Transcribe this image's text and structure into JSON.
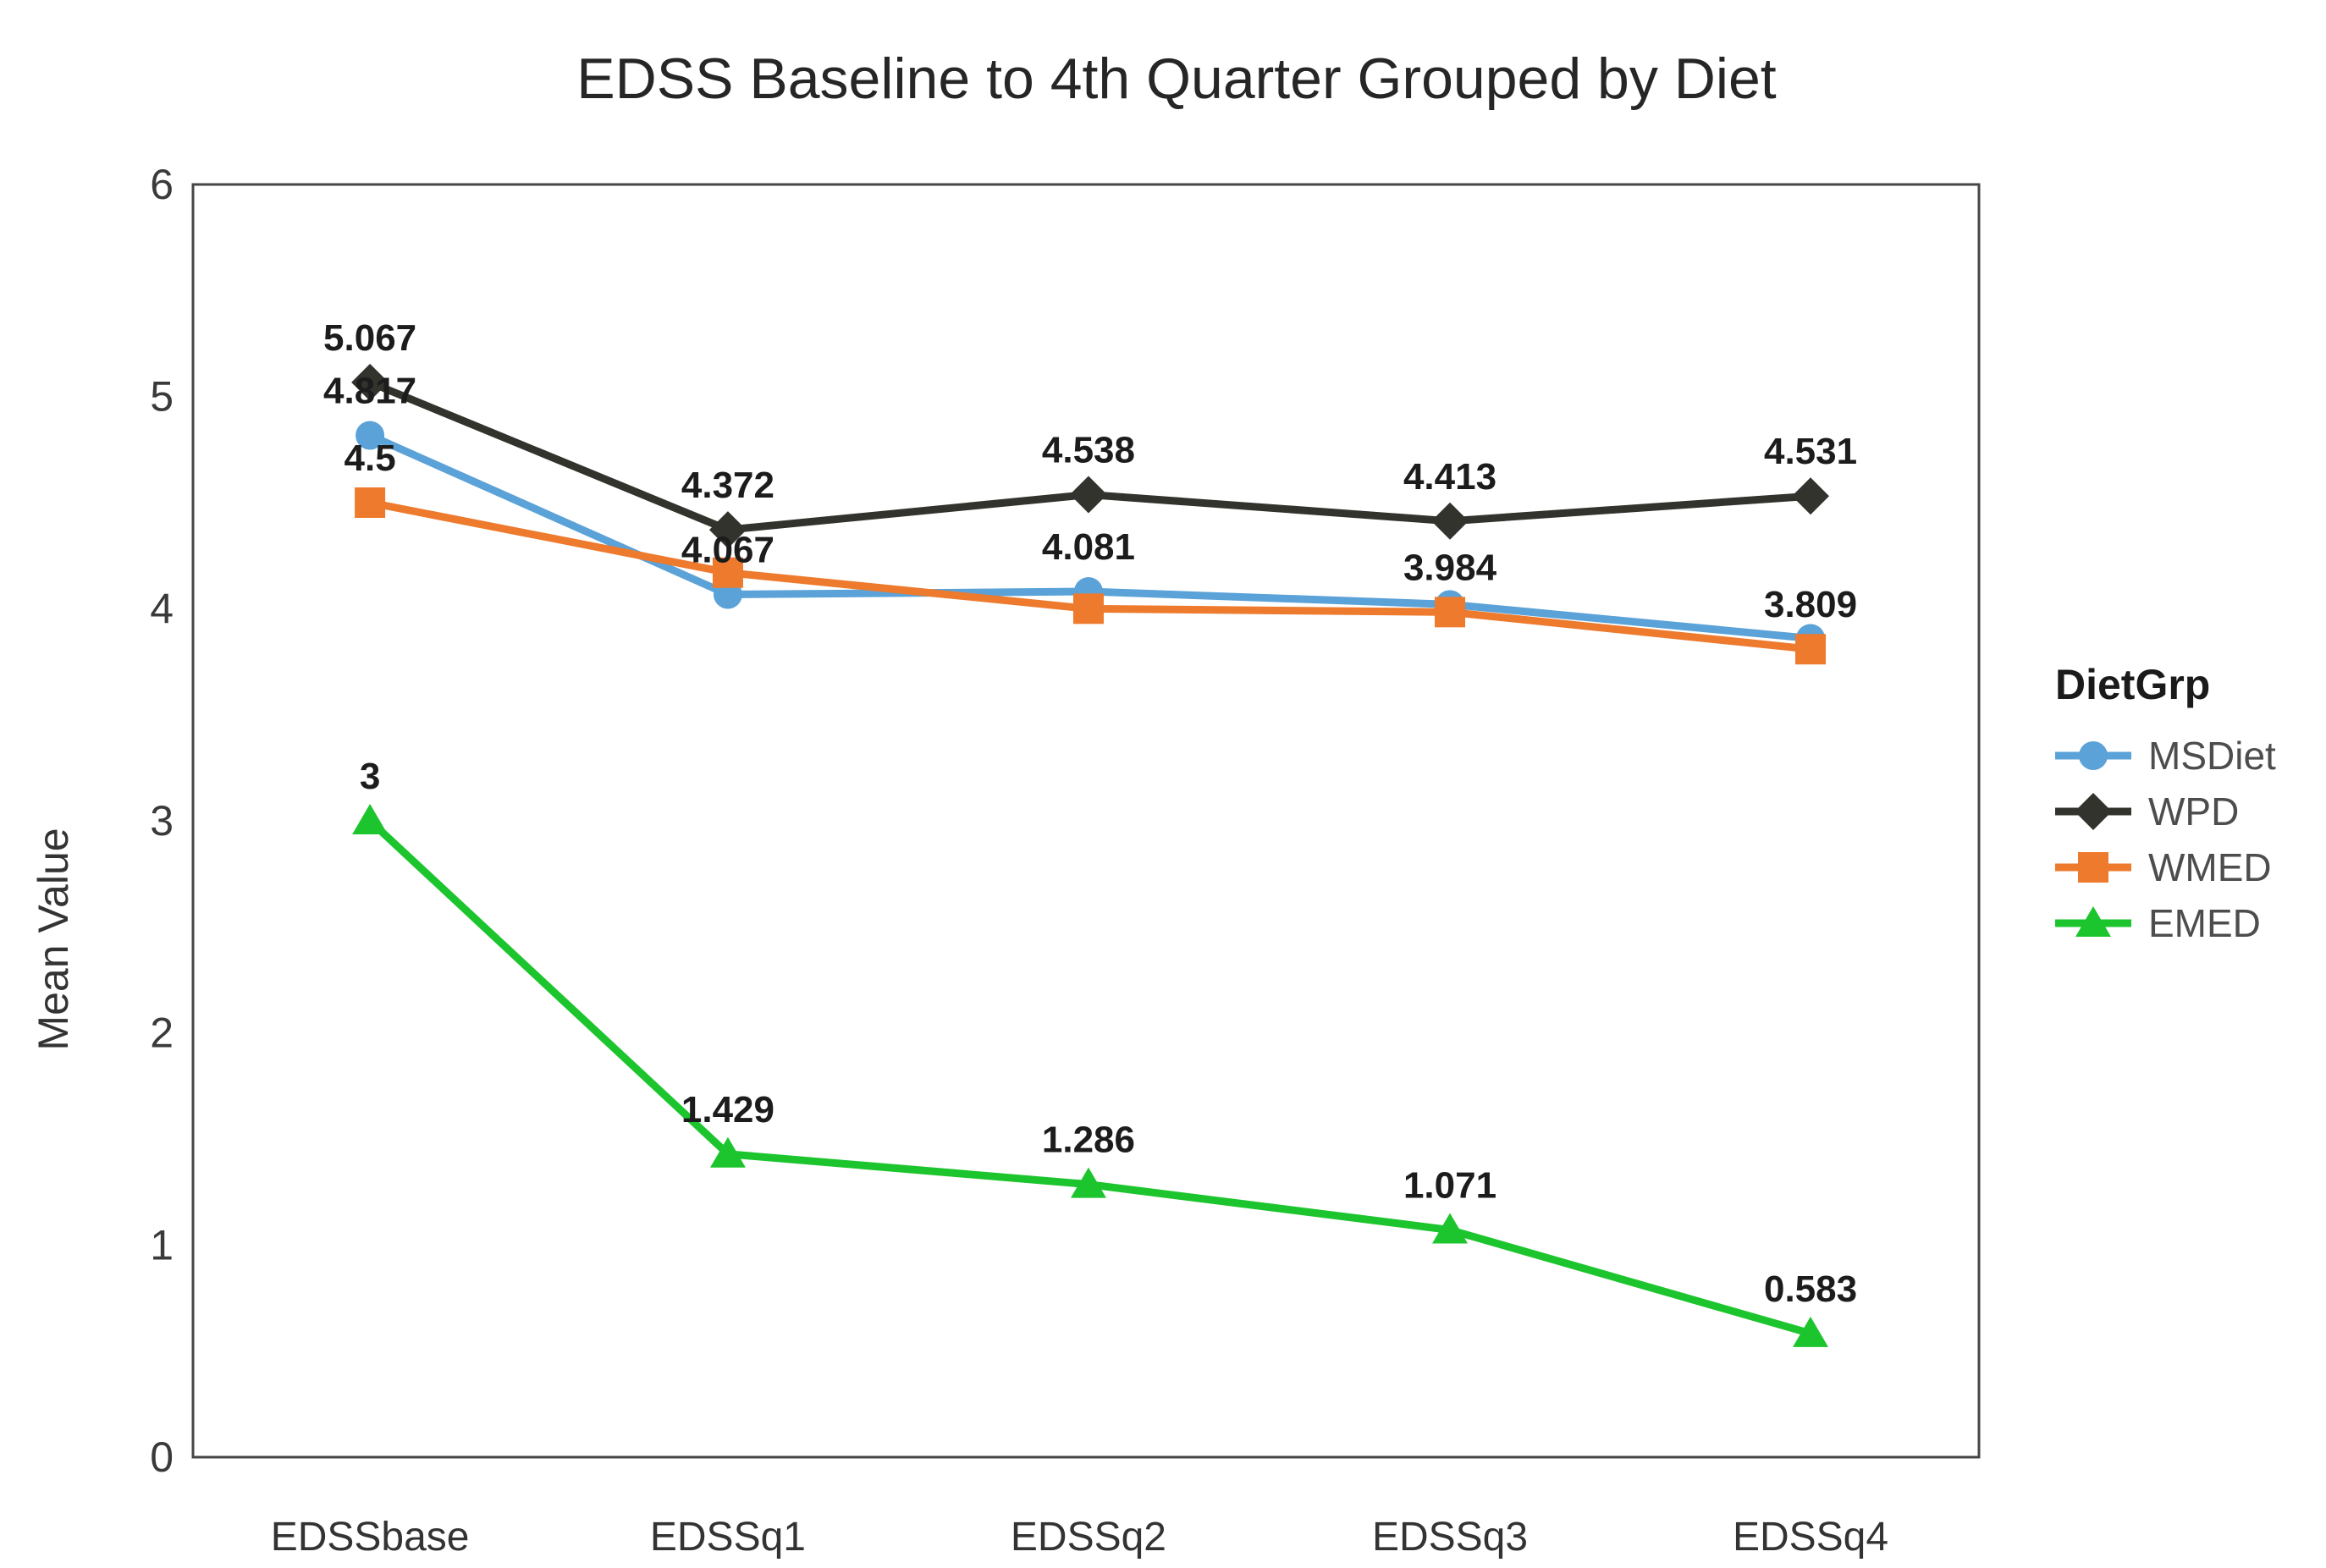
{
  "chart_data": {
    "type": "line",
    "title": "EDSS Baseline to 4th Quarter Grouped by Diet",
    "ylabel": "Mean Value",
    "xlabel": "",
    "ylim": [
      0,
      6
    ],
    "yticks": [
      0,
      1,
      2,
      3,
      4,
      5,
      6
    ],
    "grid": false,
    "frame": true,
    "categories": [
      "EDSSbase",
      "EDSSq1",
      "EDSSq2",
      "EDSSq3",
      "EDSSq4"
    ],
    "legend": {
      "title": "DietGrp",
      "position": "right",
      "entries": [
        "MSDiet",
        "WPD",
        "WMED",
        "EMED"
      ]
    },
    "series": [
      {
        "name": "MSDiet",
        "marker": "circle",
        "color": "#5AA2D8",
        "values": [
          4.817,
          4.067,
          4.081,
          4.02,
          3.86
        ],
        "point_labels": [
          "4.817",
          "4.067",
          "4.081",
          "",
          ""
        ]
      },
      {
        "name": "WPD",
        "marker": "diamond",
        "color": "#33332E",
        "values": [
          5.067,
          4.372,
          4.538,
          4.413,
          4.531
        ],
        "point_labels": [
          "5.067",
          "4.372",
          "4.538",
          "4.413",
          "4.531"
        ]
      },
      {
        "name": "WMED",
        "marker": "square",
        "color": "#ED7A2D",
        "values": [
          4.5,
          4.17,
          4.0,
          3.984,
          3.809
        ],
        "point_labels": [
          "4.5",
          "",
          "",
          "3.984",
          "3.809"
        ]
      },
      {
        "name": "EMED",
        "marker": "triangle",
        "color": "#1CC52D",
        "values": [
          3,
          1.429,
          1.286,
          1.071,
          0.583
        ],
        "point_labels": [
          "3",
          "1.429",
          "1.286",
          "1.071",
          "0.583"
        ]
      }
    ],
    "styles": {
      "title_color": "#262626",
      "tick_color": "#3A3A3A",
      "axis_title_color": "#333333",
      "data_label_color": "#1C1C1C",
      "legend_title_color": "#1A1A1A",
      "legend_text_color": "#4D4D4D",
      "frame_color": "#464646",
      "background": "#FFFFFF"
    }
  }
}
